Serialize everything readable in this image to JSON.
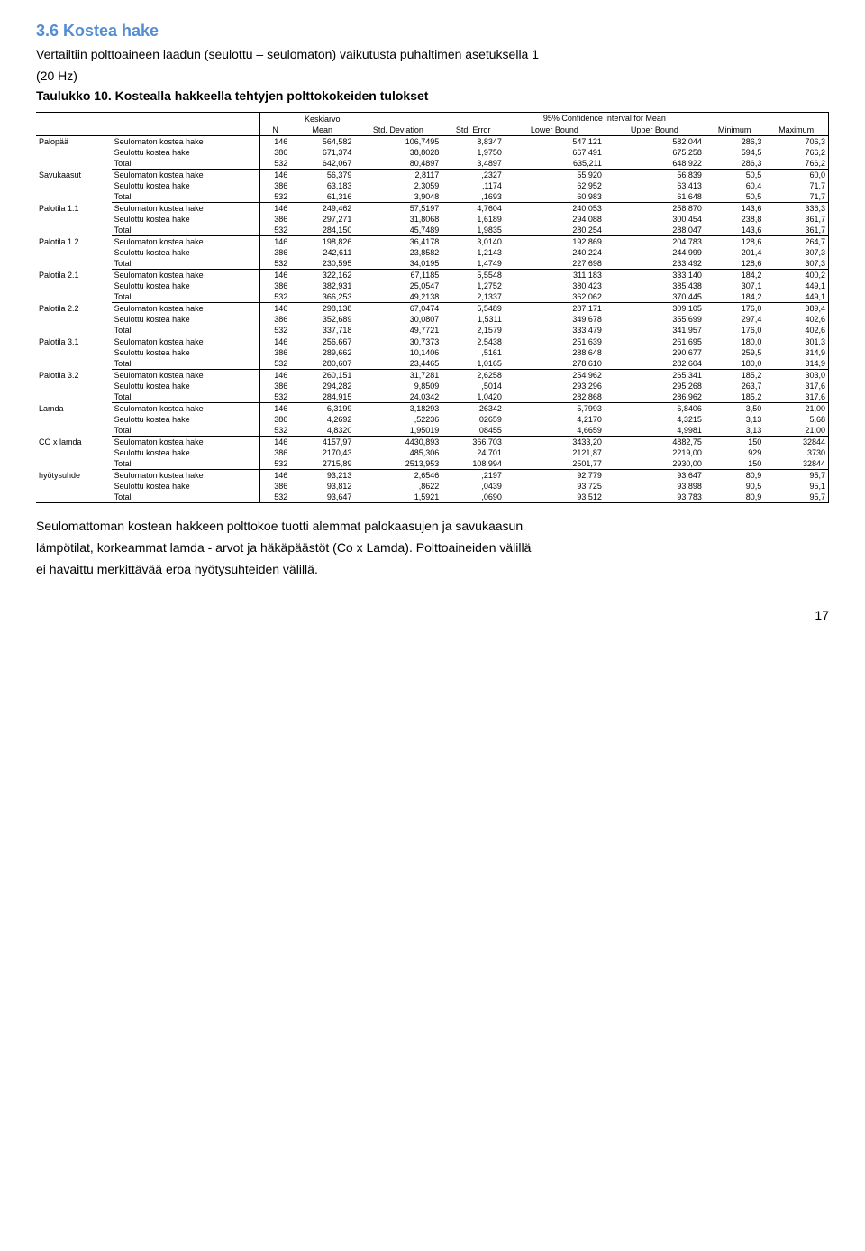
{
  "heading": "3.6  Kostea hake",
  "intro_line1": "Vertailtiin polttoaineen laadun (seulottu – seulomaton) vaikutusta puhaltimen asetuksella 1",
  "intro_line2": "(20 Hz)",
  "table_caption": "Taulukko 10. Kostealla hakkeella tehtyjen polttokokeiden tulokset",
  "col_headers": {
    "n": "N",
    "keskiarvo": "Keskiarvo",
    "mean": "Mean",
    "std_dev": "Std. Deviation",
    "std_err": "Std. Error",
    "ci_group": "95% Confidence Interval for Mean",
    "lower": "Lower Bound",
    "upper": "Upper Bound",
    "min": "Minimum",
    "max": "Maximum"
  },
  "row_labels": {
    "seulomaton": "Seulomaton kostea hake",
    "seulottu": "Seulottu kostea hake",
    "total": "Total"
  },
  "groups": [
    {
      "name": "Palopää",
      "rows": [
        {
          "n": "146",
          "mean": "564,582",
          "sd": "106,7495",
          "se": "8,8347",
          "lo": "547,121",
          "up": "582,044",
          "min": "286,3",
          "max": "706,3"
        },
        {
          "n": "386",
          "mean": "671,374",
          "sd": "38,8028",
          "se": "1,9750",
          "lo": "667,491",
          "up": "675,258",
          "min": "594,5",
          "max": "766,2"
        },
        {
          "n": "532",
          "mean": "642,067",
          "sd": "80,4897",
          "se": "3,4897",
          "lo": "635,211",
          "up": "648,922",
          "min": "286,3",
          "max": "766,2"
        }
      ]
    },
    {
      "name": "Savukaasut",
      "rows": [
        {
          "n": "146",
          "mean": "56,379",
          "sd": "2,8117",
          "se": ",2327",
          "lo": "55,920",
          "up": "56,839",
          "min": "50,5",
          "max": "60,0"
        },
        {
          "n": "386",
          "mean": "63,183",
          "sd": "2,3059",
          "se": ",1174",
          "lo": "62,952",
          "up": "63,413",
          "min": "60,4",
          "max": "71,7"
        },
        {
          "n": "532",
          "mean": "61,316",
          "sd": "3,9048",
          "se": ",1693",
          "lo": "60,983",
          "up": "61,648",
          "min": "50,5",
          "max": "71,7"
        }
      ]
    },
    {
      "name": "Palotila 1.1",
      "rows": [
        {
          "n": "146",
          "mean": "249,462",
          "sd": "57,5197",
          "se": "4,7604",
          "lo": "240,053",
          "up": "258,870",
          "min": "143,6",
          "max": "336,3"
        },
        {
          "n": "386",
          "mean": "297,271",
          "sd": "31,8068",
          "se": "1,6189",
          "lo": "294,088",
          "up": "300,454",
          "min": "238,8",
          "max": "361,7"
        },
        {
          "n": "532",
          "mean": "284,150",
          "sd": "45,7489",
          "se": "1,9835",
          "lo": "280,254",
          "up": "288,047",
          "min": "143,6",
          "max": "361,7"
        }
      ]
    },
    {
      "name": "Palotila 1.2",
      "rows": [
        {
          "n": "146",
          "mean": "198,826",
          "sd": "36,4178",
          "se": "3,0140",
          "lo": "192,869",
          "up": "204,783",
          "min": "128,6",
          "max": "264,7"
        },
        {
          "n": "386",
          "mean": "242,611",
          "sd": "23,8582",
          "se": "1,2143",
          "lo": "240,224",
          "up": "244,999",
          "min": "201,4",
          "max": "307,3"
        },
        {
          "n": "532",
          "mean": "230,595",
          "sd": "34,0195",
          "se": "1,4749",
          "lo": "227,698",
          "up": "233,492",
          "min": "128,6",
          "max": "307,3"
        }
      ]
    },
    {
      "name": "Palotila 2.1",
      "rows": [
        {
          "n": "146",
          "mean": "322,162",
          "sd": "67,1185",
          "se": "5,5548",
          "lo": "311,183",
          "up": "333,140",
          "min": "184,2",
          "max": "400,2"
        },
        {
          "n": "386",
          "mean": "382,931",
          "sd": "25,0547",
          "se": "1,2752",
          "lo": "380,423",
          "up": "385,438",
          "min": "307,1",
          "max": "449,1"
        },
        {
          "n": "532",
          "mean": "366,253",
          "sd": "49,2138",
          "se": "2,1337",
          "lo": "362,062",
          "up": "370,445",
          "min": "184,2",
          "max": "449,1"
        }
      ]
    },
    {
      "name": "Palotila 2.2",
      "rows": [
        {
          "n": "146",
          "mean": "298,138",
          "sd": "67,0474",
          "se": "5,5489",
          "lo": "287,171",
          "up": "309,105",
          "min": "176,0",
          "max": "389,4"
        },
        {
          "n": "386",
          "mean": "352,689",
          "sd": "30,0807",
          "se": "1,5311",
          "lo": "349,678",
          "up": "355,699",
          "min": "297,4",
          "max": "402,6"
        },
        {
          "n": "532",
          "mean": "337,718",
          "sd": "49,7721",
          "se": "2,1579",
          "lo": "333,479",
          "up": "341,957",
          "min": "176,0",
          "max": "402,6"
        }
      ]
    },
    {
      "name": "Palotila 3.1",
      "rows": [
        {
          "n": "146",
          "mean": "256,667",
          "sd": "30,7373",
          "se": "2,5438",
          "lo": "251,639",
          "up": "261,695",
          "min": "180,0",
          "max": "301,3"
        },
        {
          "n": "386",
          "mean": "289,662",
          "sd": "10,1406",
          "se": ",5161",
          "lo": "288,648",
          "up": "290,677",
          "min": "259,5",
          "max": "314,9"
        },
        {
          "n": "532",
          "mean": "280,607",
          "sd": "23,4465",
          "se": "1,0165",
          "lo": "278,610",
          "up": "282,604",
          "min": "180,0",
          "max": "314,9"
        }
      ]
    },
    {
      "name": "Palotila 3.2",
      "rows": [
        {
          "n": "146",
          "mean": "260,151",
          "sd": "31,7281",
          "se": "2,6258",
          "lo": "254,962",
          "up": "265,341",
          "min": "185,2",
          "max": "303,0"
        },
        {
          "n": "386",
          "mean": "294,282",
          "sd": "9,8509",
          "se": ",5014",
          "lo": "293,296",
          "up": "295,268",
          "min": "263,7",
          "max": "317,6"
        },
        {
          "n": "532",
          "mean": "284,915",
          "sd": "24,0342",
          "se": "1,0420",
          "lo": "282,868",
          "up": "286,962",
          "min": "185,2",
          "max": "317,6"
        }
      ]
    },
    {
      "name": "Lamda",
      "rows": [
        {
          "n": "146",
          "mean": "6,3199",
          "sd": "3,18293",
          "se": ",26342",
          "lo": "5,7993",
          "up": "6,8406",
          "min": "3,50",
          "max": "21,00"
        },
        {
          "n": "386",
          "mean": "4,2692",
          "sd": ",52236",
          "se": ",02659",
          "lo": "4,2170",
          "up": "4,3215",
          "min": "3,13",
          "max": "5,68"
        },
        {
          "n": "532",
          "mean": "4,8320",
          "sd": "1,95019",
          "se": ",08455",
          "lo": "4,6659",
          "up": "4,9981",
          "min": "3,13",
          "max": "21,00"
        }
      ]
    },
    {
      "name": "CO x lamda",
      "rows": [
        {
          "n": "146",
          "mean": "4157,97",
          "sd": "4430,893",
          "se": "366,703",
          "lo": "3433,20",
          "up": "4882,75",
          "min": "150",
          "max": "32844"
        },
        {
          "n": "386",
          "mean": "2170,43",
          "sd": "485,306",
          "se": "24,701",
          "lo": "2121,87",
          "up": "2219,00",
          "min": "929",
          "max": "3730"
        },
        {
          "n": "532",
          "mean": "2715,89",
          "sd": "2513,953",
          "se": "108,994",
          "lo": "2501,77",
          "up": "2930,00",
          "min": "150",
          "max": "32844"
        }
      ]
    },
    {
      "name": "hyötysuhde",
      "rows": [
        {
          "n": "146",
          "mean": "93,213",
          "sd": "2,6546",
          "se": ",2197",
          "lo": "92,779",
          "up": "93,647",
          "min": "80,9",
          "max": "95,7"
        },
        {
          "n": "386",
          "mean": "93,812",
          "sd": ",8622",
          "se": ",0439",
          "lo": "93,725",
          "up": "93,898",
          "min": "90,5",
          "max": "95,1"
        },
        {
          "n": "532",
          "mean": "93,647",
          "sd": "1,5921",
          "se": ",0690",
          "lo": "93,512",
          "up": "93,783",
          "min": "80,9",
          "max": "95,7"
        }
      ]
    }
  ],
  "closing_p1": "Seulomattoman kostean hakkeen polttokoe tuotti alemmat palokaasujen ja savukaasun",
  "closing_p2": "lämpötilat, korkeammat lamda - arvot ja häkäpäästöt (Co x Lamda). Polttoaineiden välillä",
  "closing_p3": "ei havaittu merkittävää eroa hyötysuhteiden välillä.",
  "page_number": "17",
  "style": {
    "heading_color": "#548dd4",
    "body_font": "Arial, sans-serif",
    "table_font_size": "9px",
    "body_font_size": "14px"
  }
}
